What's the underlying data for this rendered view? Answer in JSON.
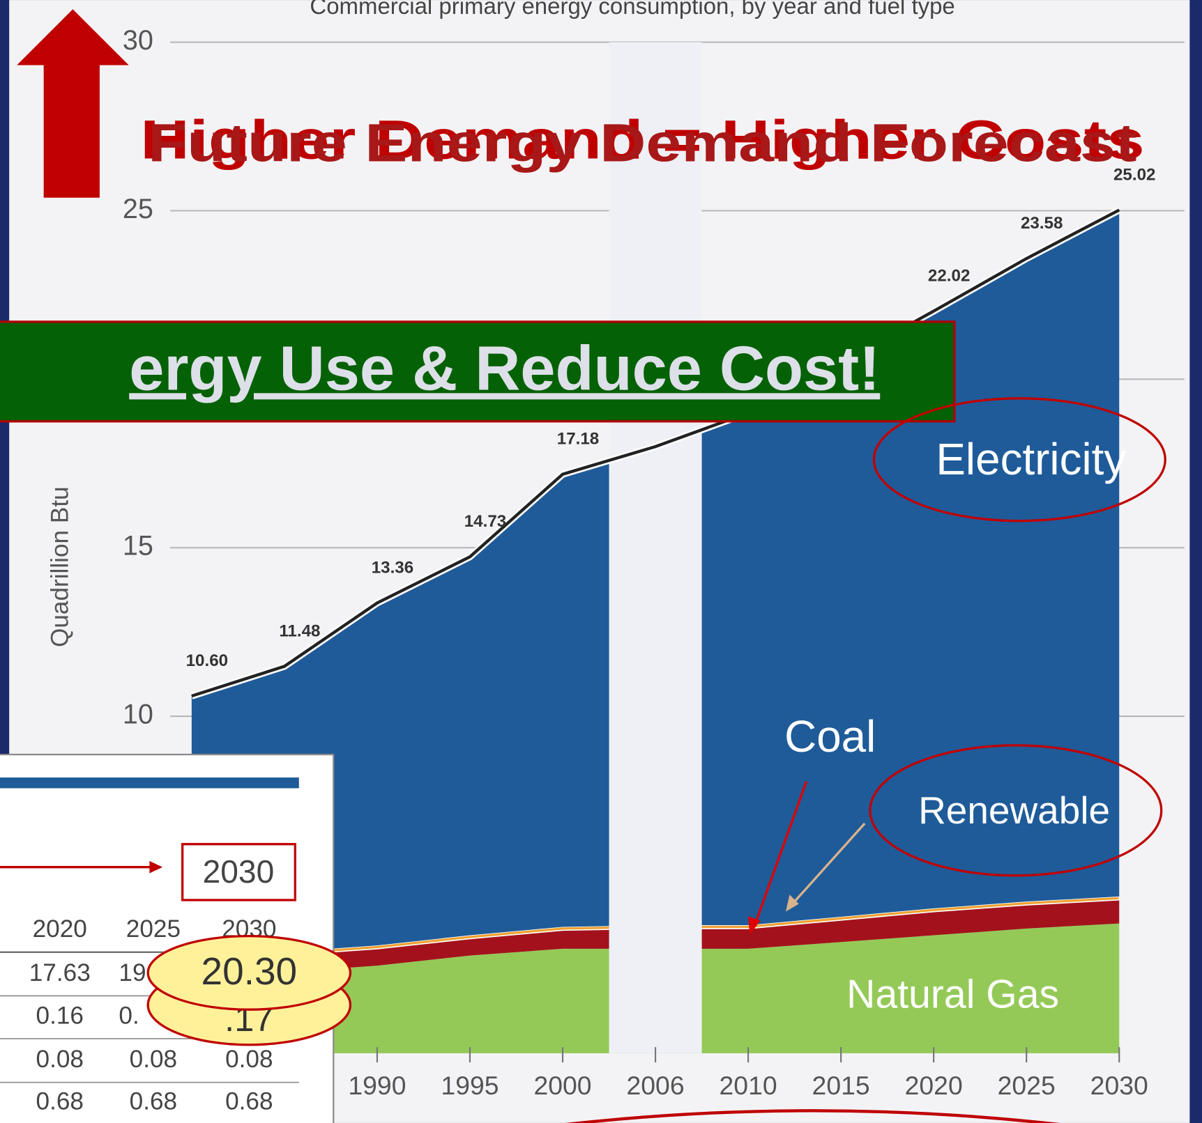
{
  "chart_data": {
    "type": "area",
    "title": "Commercial primary energy consumption, by year and fuel type",
    "y_label": "Quadrillion Btu",
    "categories": [
      null,
      null,
      "1990",
      "1995",
      "2000",
      "2006",
      "2010",
      "2015",
      "2020",
      "2025",
      "2030"
    ],
    "ylim": [
      0,
      30
    ],
    "yticks": [
      10,
      15,
      20,
      25,
      30
    ],
    "grid": true,
    "series": [
      {
        "name": "Natural Gas",
        "color": "#94c957",
        "values": [
          2.2,
          2.4,
          2.6,
          2.9,
          3.1,
          3.1,
          3.1,
          3.3,
          3.5,
          3.7,
          3.85
        ]
      },
      {
        "name": "Coal",
        "color": "#a3121c",
        "values": [
          0.5,
          0.5,
          0.5,
          0.5,
          0.55,
          0.6,
          0.6,
          0.65,
          0.7,
          0.7,
          0.7
        ]
      },
      {
        "name": "Renewable",
        "color": "#f0a030",
        "values": [
          0.1,
          0.1,
          0.1,
          0.1,
          0.1,
          0.1,
          0.1,
          0.1,
          0.1,
          0.1,
          0.1
        ]
      },
      {
        "name": "Electricity",
        "color": "#1f5b99",
        "values": [
          7.8,
          8.48,
          10.16,
          11.23,
          13.43,
          14.2,
          15.2,
          16.45,
          17.72,
          19.08,
          20.37
        ]
      }
    ],
    "totals": {
      "color": "#222222",
      "values": [
        10.6,
        11.48,
        13.36,
        14.73,
        17.18,
        18.0,
        19.0,
        20.5,
        22.02,
        23.58,
        25.02
      ],
      "value_labels": [
        "10.60",
        "11.48",
        "13.36",
        "14.73",
        "17.18",
        null,
        null,
        null,
        "22.02",
        "23.58",
        "25.02"
      ]
    },
    "annotations": [
      "Higher Demand = Higher Costs",
      "Future Energy Demand Forecast"
    ]
  },
  "banner": {
    "text": "ergy Use & Reduce Cost!"
  },
  "table": {
    "highlight": "2030",
    "header": [
      "2020",
      "2025",
      "2030"
    ],
    "rows": [
      [
        "17.63",
        "19"
      ],
      [
        "0.16",
        "0."
      ],
      [
        "0.08",
        "0.08",
        "0.08"
      ],
      [
        "0.68",
        "0.68",
        "0.68"
      ]
    ],
    "callouts": [
      "20.30",
      ".17"
    ]
  }
}
